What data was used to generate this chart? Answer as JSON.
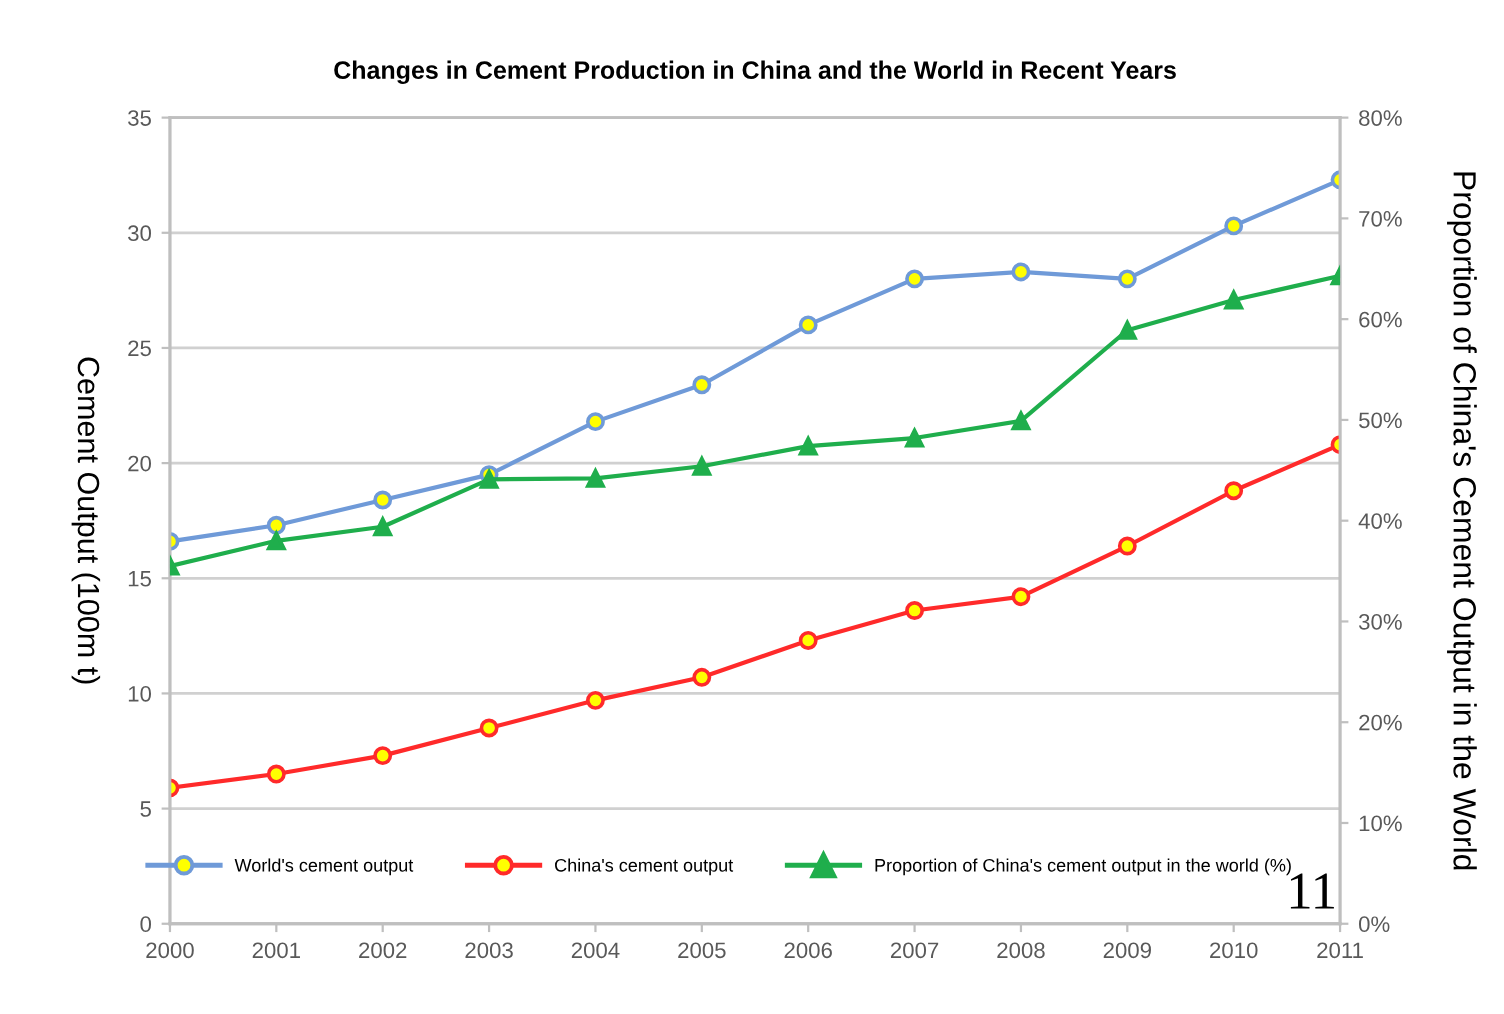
{
  "chart_data": {
    "type": "line",
    "title": "Changes in Cement Production in China and the World in Recent Years",
    "ylabel": "Cement Output (100m t)",
    "y2label": "Proportion of China's Cement Output in the World",
    "x": [
      2000,
      2001,
      2002,
      2003,
      2004,
      2005,
      2006,
      2007,
      2008,
      2009,
      2010,
      2011
    ],
    "xlim": [
      2000,
      2011
    ],
    "xticks": [
      2000,
      2001,
      2002,
      2003,
      2004,
      2005,
      2006,
      2007,
      2008,
      2009,
      2010,
      2011
    ],
    "ylim": [
      0,
      35
    ],
    "yticks": [
      0,
      5,
      10,
      15,
      20,
      25,
      30,
      35
    ],
    "y2lim": [
      0,
      80
    ],
    "y2ticks": [
      {
        "value": 0,
        "label": "0%"
      },
      {
        "value": 10,
        "label": "10%"
      },
      {
        "value": 20,
        "label": "20%"
      },
      {
        "value": 30,
        "label": "30%"
      },
      {
        "value": 40,
        "label": "40%"
      },
      {
        "value": 50,
        "label": "50%"
      },
      {
        "value": 60,
        "label": "60%"
      },
      {
        "value": 70,
        "label": "70%"
      },
      {
        "value": 80,
        "label": "80%"
      }
    ],
    "series": [
      {
        "name": "World's cement output",
        "color": "#6f9ad8",
        "marker": "circle",
        "values": [
          16.6,
          17.3,
          18.4,
          19.5,
          21.8,
          23.4,
          26.0,
          28.0,
          28.3,
          28.0,
          30.3,
          32.3
        ]
      },
      {
        "name": "China's cement output",
        "color": "#ff2a2a",
        "marker": "circle",
        "values": [
          5.9,
          6.5,
          7.3,
          8.5,
          9.7,
          10.7,
          12.3,
          13.6,
          14.2,
          16.4,
          18.8,
          20.8
        ]
      },
      {
        "name": "Proportion of China's cement output in the world (%)",
        "color": "#1fae4c",
        "marker": "triangle",
        "axis": "y2",
        "values": [
          35.5,
          38.0,
          39.4,
          44.1,
          44.2,
          45.4,
          47.4,
          48.2,
          49.9,
          58.9,
          61.9,
          64.3
        ]
      }
    ],
    "grid": "y",
    "legend": "bottom",
    "line_style": "solid",
    "annotations": [
      "11"
    ]
  }
}
